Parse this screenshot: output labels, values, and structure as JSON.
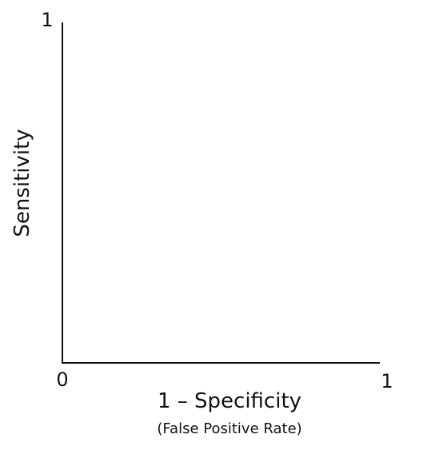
{
  "chart_data": {
    "type": "line",
    "title": "",
    "xlabel": "1 – Specificity",
    "xlabel_sub": "(False Positive Rate)",
    "ylabel": "Sensitivity",
    "xlim": [
      0,
      1
    ],
    "ylim": [
      0,
      1
    ],
    "x_ticks": [
      "0",
      "1"
    ],
    "y_ticks": [
      "1"
    ],
    "grid": false,
    "series": []
  }
}
